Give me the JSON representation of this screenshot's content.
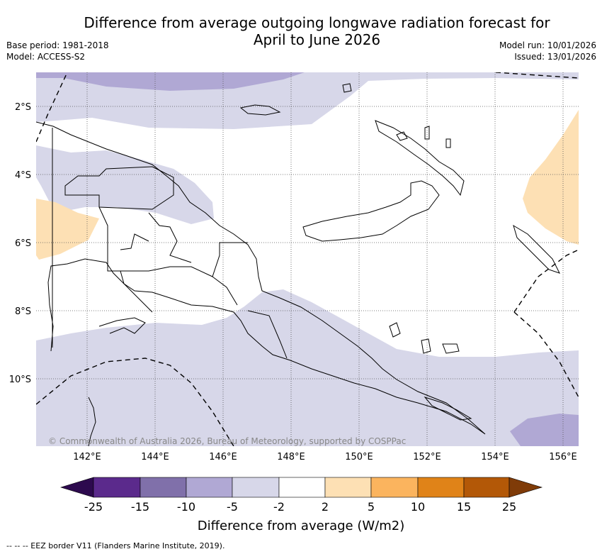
{
  "title_line1": "Difference from average outgoing longwave radiation forecast for",
  "title_line2": "April to June 2026",
  "base_period": "Base period: 1981-2018",
  "model": "Model: ACCESS-S2",
  "model_run": "Model run: 10/01/2026",
  "issued": "Issued: 13/01/2026",
  "map": {
    "lat_labels": [
      "2°S",
      "4°S",
      "6°S",
      "8°S",
      "10°S"
    ],
    "lon_labels": [
      "142°E",
      "144°E",
      "146°E",
      "148°E",
      "150°E",
      "152°E",
      "154°E",
      "156°E"
    ],
    "copyright": "© Commonwealth of Australia 2026, Bureau of Meteorology, supported by COSPPac"
  },
  "colorbar": {
    "title": "Difference from average (W/m2)",
    "ticks": [
      "-25",
      "-15",
      "-10",
      "-5",
      "-2",
      "2",
      "5",
      "10",
      "15",
      "25"
    ],
    "colors": [
      "#2d0a4e",
      "#5b2a8c",
      "#8070aa",
      "#b0a8d4",
      "#d7d7e9",
      "#ffffff",
      "#fde0b4",
      "#fbb45e",
      "#e08318",
      "#b35807",
      "#7f3b08"
    ]
  },
  "footnote": "--  --  -- EEZ border V11 (Flanders Marine Institute, 2019)."
}
